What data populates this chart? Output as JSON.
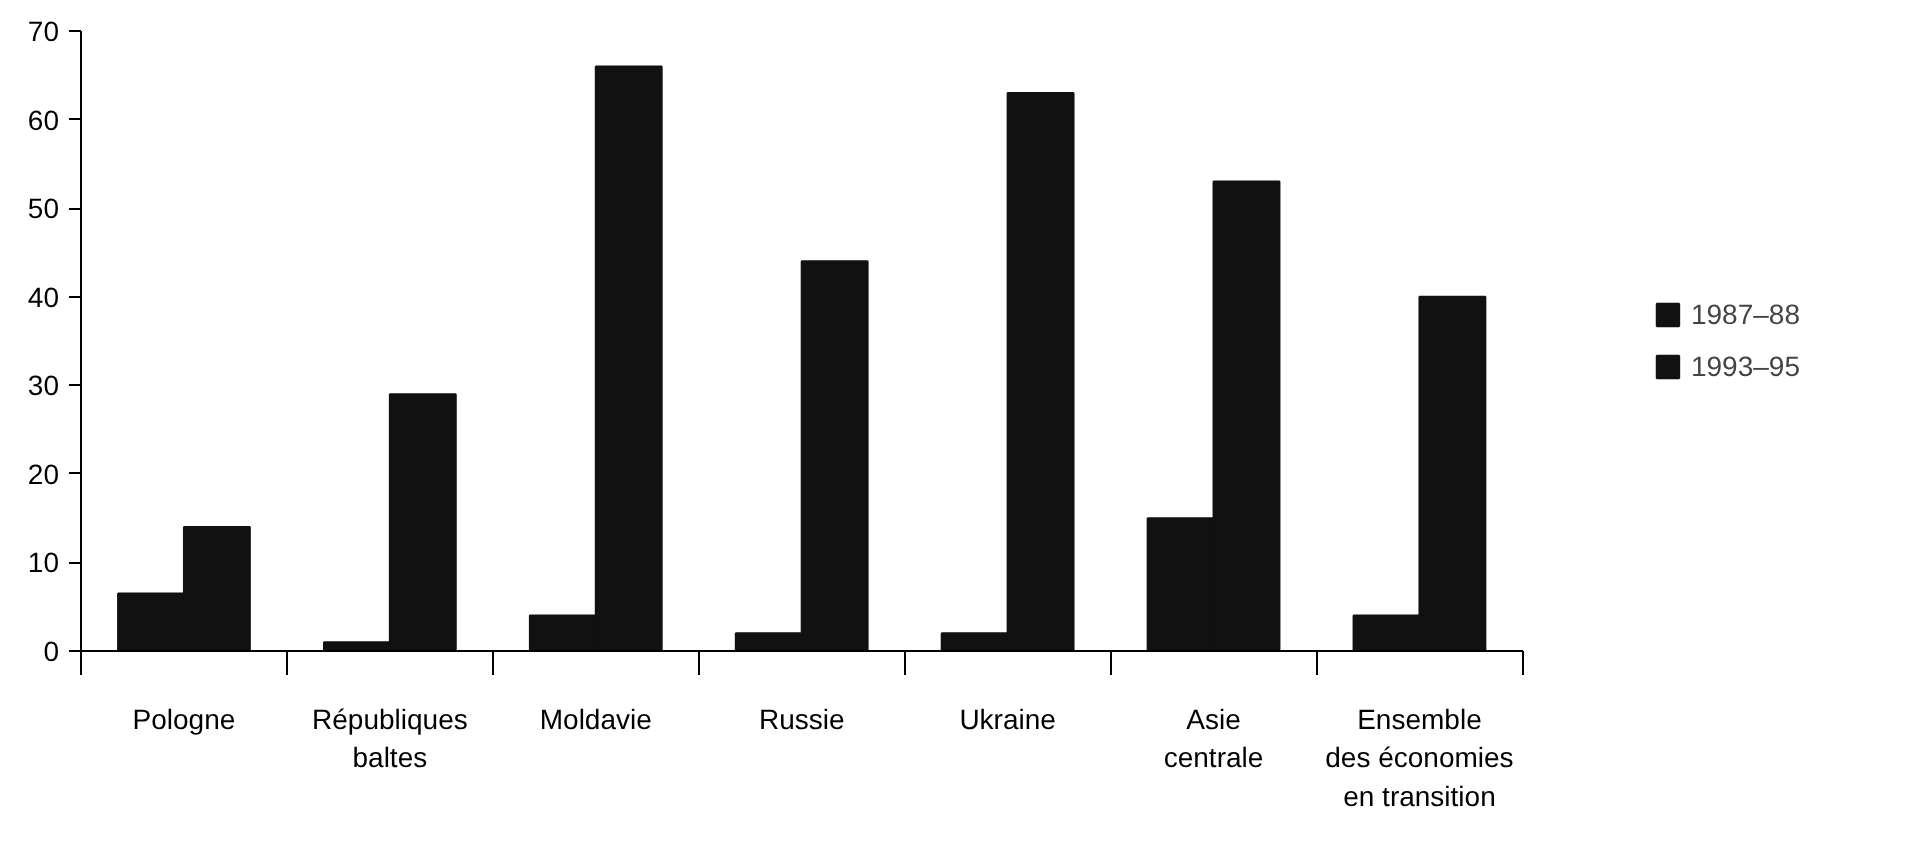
{
  "chart_data": {
    "type": "bar",
    "categories": [
      "Pologne",
      "Républiques\nbaltes",
      "Moldavie",
      "Russie",
      "Ukraine",
      "Asie\ncentrale",
      "Ensemble\ndes économies\nen transition"
    ],
    "series": [
      {
        "name": "1987–88",
        "color": "#111111",
        "values": [
          6.5,
          1,
          4,
          2,
          2,
          15,
          4
        ]
      },
      {
        "name": "1993–95",
        "color": "#111111",
        "values": [
          14,
          29,
          66,
          44,
          63,
          53,
          40
        ]
      }
    ],
    "ylim": [
      0,
      70
    ],
    "yticks": [
      0,
      10,
      20,
      30,
      40,
      50,
      60,
      70
    ],
    "grid": false,
    "legend": "right"
  }
}
